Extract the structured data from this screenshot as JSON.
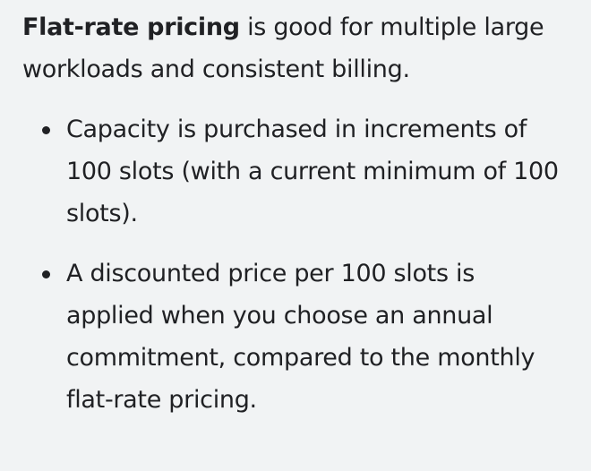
{
  "intro": {
    "bold": "Flat-rate pricing",
    "rest": " is good for multiple large workloads and consistent billing."
  },
  "points": [
    "Capacity is purchased in increments of 100 slots (with a current minimum of 100 slots).",
    "A discounted price per 100 slots is applied when you choose an annual commitment, compared to the monthly flat-rate pricing."
  ]
}
